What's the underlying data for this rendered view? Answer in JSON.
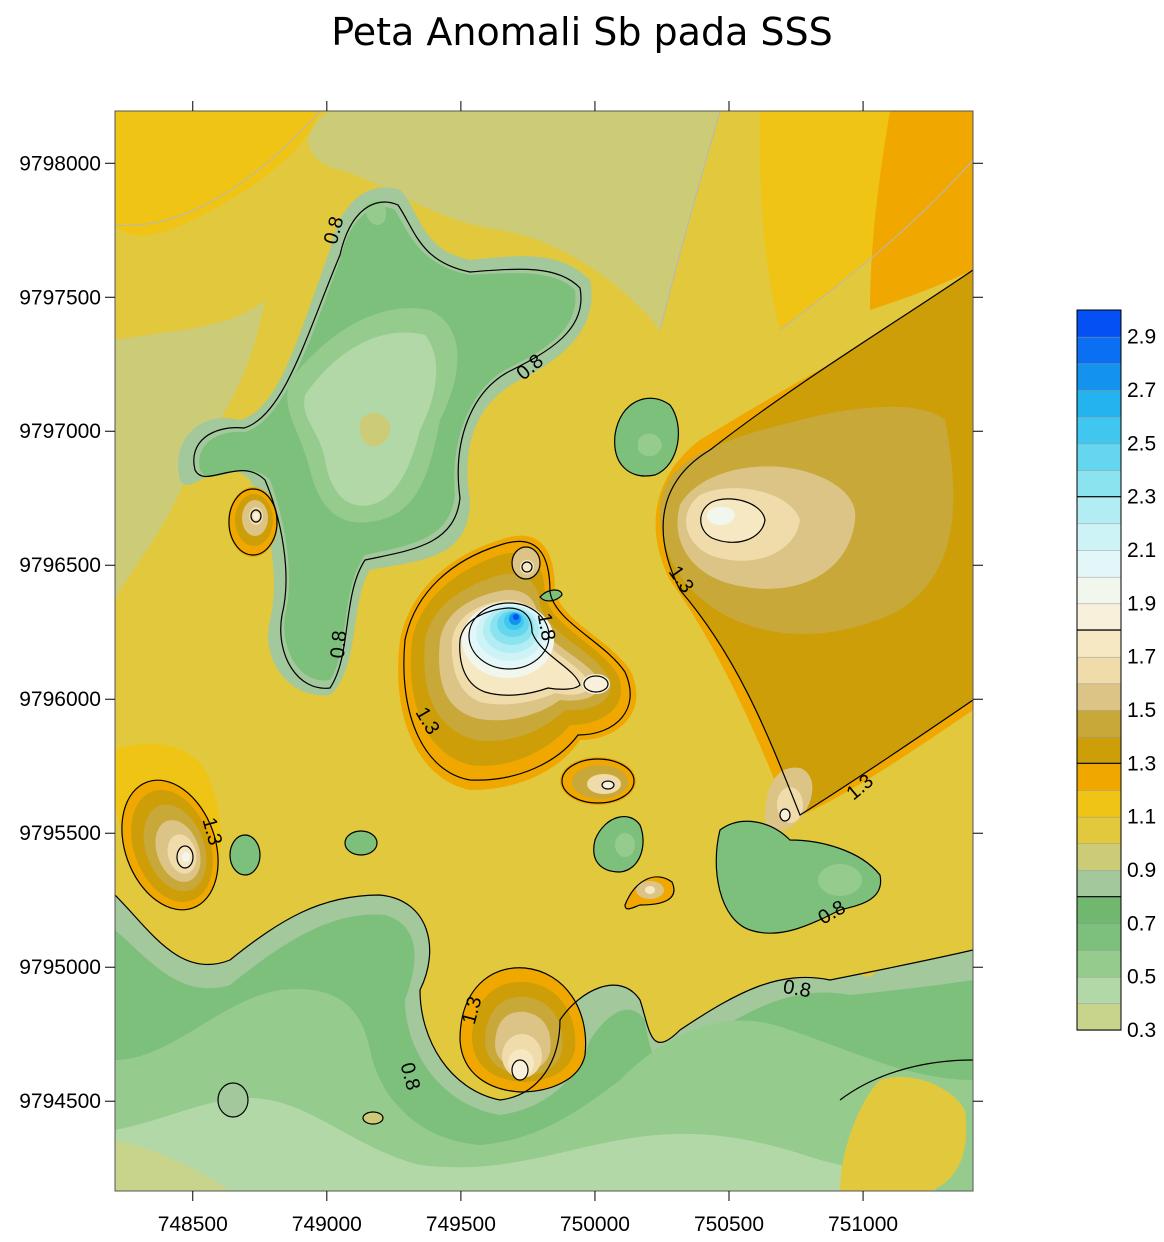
{
  "chart_data": {
    "type": "contour",
    "title": "Peta Anomali Sb pada SSS",
    "xlabel": "",
    "ylabel": "",
    "xlim": [
      748210,
      751410
    ],
    "ylim": [
      9794165,
      9798195
    ],
    "x_ticks": [
      748500,
      749000,
      749500,
      750000,
      750500,
      751000
    ],
    "y_ticks": [
      9794500,
      9795000,
      9795500,
      9796000,
      9796500,
      9797000,
      9797500,
      9798000
    ],
    "x_tick_labels": [
      "748500",
      "749000",
      "749500",
      "750000",
      "750500",
      "751000"
    ],
    "y_tick_labels": [
      "9794500",
      "9795000",
      "9795500",
      "9796000",
      "9796500",
      "9797000",
      "9797500",
      "9798000"
    ],
    "colorbar": {
      "min": 0.3,
      "max": 3.0,
      "step": 0.1,
      "tick_labels": [
        "0.3",
        "0.5",
        "0.7",
        "0.9",
        "1.1",
        "1.3",
        "1.5",
        "1.7",
        "1.9",
        "2.1",
        "2.3",
        "2.5",
        "2.7",
        "2.9"
      ],
      "major_lines": [
        0.8,
        1.3,
        1.8,
        2.3
      ],
      "colors": [
        "#c8d48c",
        "#b3d8a8",
        "#95cc8e",
        "#7cc07c",
        "#70b870",
        "#a3c89c",
        "#cccc78",
        "#e1c83c",
        "#f0c414",
        "#f0a800",
        "#cd9e08",
        "#c8a838",
        "#dcc486",
        "#f0dcaa",
        "#f6e8c3",
        "#f8f0da",
        "#f2f7ee",
        "#e3f6f8",
        "#cef3f7",
        "#b1edf2",
        "#8ae3ee",
        "#64d6ed",
        "#40c7ef",
        "#23b3ef",
        "#1493ee",
        "#0a6ff2",
        "#0450f5"
      ]
    },
    "contour_labels": [
      "0.8",
      "0.8",
      "0.8",
      "0.8",
      "0.8",
      "0.8",
      "1.3",
      "1.3",
      "1.3",
      "1.3",
      "1.3",
      "1.8"
    ],
    "anomalies": [
      {
        "x": 749700,
        "y": 9796200,
        "value": 2.9
      },
      {
        "x": 750480,
        "y": 9796580,
        "value": 1.85
      },
      {
        "x": 749650,
        "y": 9794550,
        "value": 1.8
      },
      {
        "x": 748470,
        "y": 9795310,
        "value": 1.85
      },
      {
        "x": 750700,
        "y": 9795480,
        "value": 1.7
      },
      {
        "x": 748740,
        "y": 9796590,
        "value": 1.85
      },
      {
        "x": 750000,
        "y": 9795950,
        "value": 1.8
      },
      {
        "x": 750040,
        "y": 9795580,
        "value": 1.75
      },
      {
        "x": 750180,
        "y": 9795190,
        "value": 1.6
      },
      {
        "x": 749740,
        "y": 9796410,
        "value": 1.7
      },
      {
        "x": 749200,
        "y": 9796920,
        "value": 0.35
      },
      {
        "x": 749300,
        "y": 9797200,
        "value": 0.45
      },
      {
        "x": 750190,
        "y": 9796820,
        "value": 0.65
      },
      {
        "x": 750110,
        "y": 9795370,
        "value": 0.62
      },
      {
        "x": 748650,
        "y": 9796750,
        "value": 0.7
      },
      {
        "x": 749150,
        "y": 9795390,
        "value": 0.7
      },
      {
        "x": 748610,
        "y": 9795290,
        "value": 0.7
      },
      {
        "x": 750780,
        "y": 9795260,
        "value": 0.65
      },
      {
        "x": 748600,
        "y": 9794400,
        "value": 0.4
      },
      {
        "x": 749200,
        "y": 9794600,
        "value": 0.5
      }
    ]
  }
}
